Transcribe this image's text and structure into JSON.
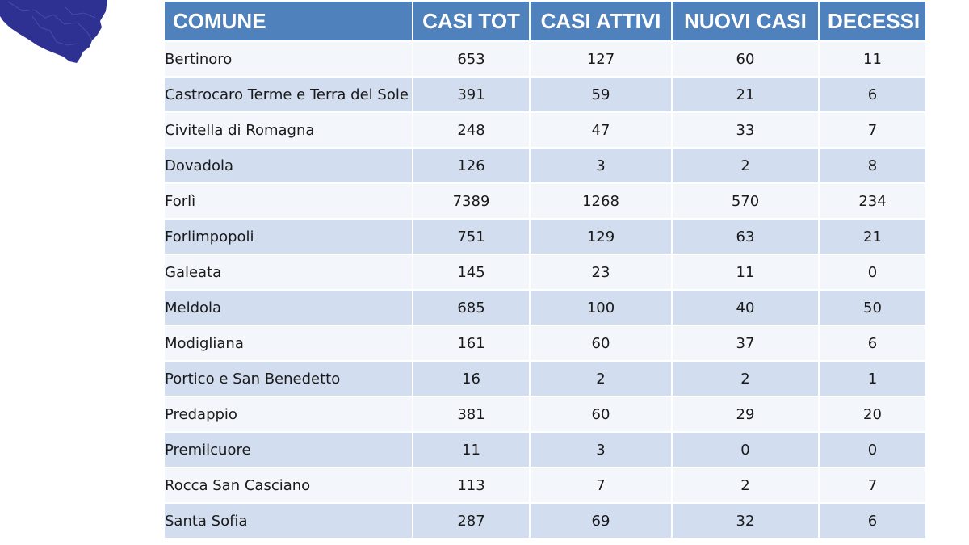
{
  "colors": {
    "header_bg": "#4f81bd",
    "row_light": "#f3f6fb",
    "row_dark": "#d2ddef",
    "map_fill": "#2e3192"
  },
  "map": {
    "icon": "region-map-icon"
  },
  "table": {
    "headers": [
      "COMUNE",
      "CASI TOT",
      "CASI ATTIVI",
      "NUOVI CASI",
      "DECESSI"
    ],
    "rows": [
      [
        "Bertinoro",
        "653",
        "127",
        "60",
        "11"
      ],
      [
        "Castrocaro Terme e Terra del Sole",
        "391",
        "59",
        "21",
        "6"
      ],
      [
        "Civitella di Romagna",
        "248",
        "47",
        "33",
        "7"
      ],
      [
        "Dovadola",
        "126",
        "3",
        "2",
        "8"
      ],
      [
        "Forlì",
        "7389",
        "1268",
        "570",
        "234"
      ],
      [
        "Forlimpopoli",
        "751",
        "129",
        "63",
        "21"
      ],
      [
        "Galeata",
        "145",
        "23",
        "11",
        "0"
      ],
      [
        "Meldola",
        "685",
        "100",
        "40",
        "50"
      ],
      [
        "Modigliana",
        "161",
        "60",
        "37",
        "6"
      ],
      [
        "Portico e San Benedetto",
        "16",
        "2",
        "2",
        "1"
      ],
      [
        "Predappio",
        "381",
        "60",
        "29",
        "20"
      ],
      [
        "Premilcuore",
        "11",
        "3",
        "0",
        "0"
      ],
      [
        "Rocca San Casciano",
        "113",
        "7",
        "2",
        "7"
      ],
      [
        "Santa Sofia",
        "287",
        "69",
        "32",
        "6"
      ]
    ]
  }
}
